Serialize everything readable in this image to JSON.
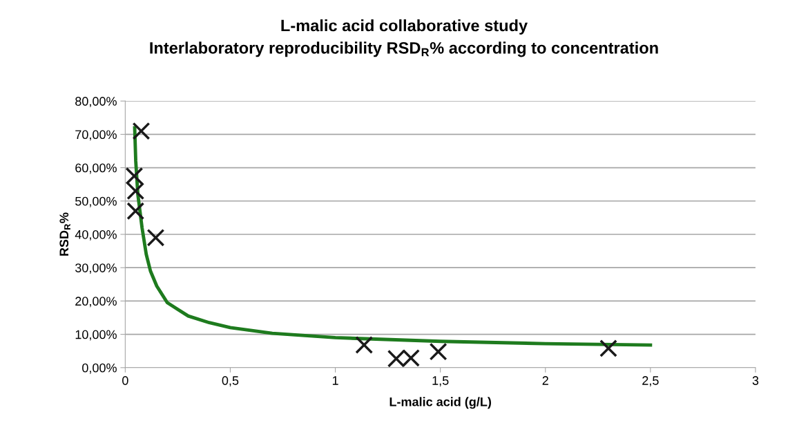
{
  "chart_data": {
    "type": "scatter",
    "title": "L-malic acid collaborative study\nInterlaboratory reproducibility RSD$_{R}$% according to concentration",
    "xlabel": "L-malic acid (g/L)",
    "ylabel": "RSD$_{R}$%",
    "series": [
      {
        "color": "#1a1a1a",
        "marker": "cross",
        "x": [
          0.076,
          0.043,
          0.049,
          0.049,
          0.145,
          1.137,
          1.29,
          1.36,
          1.49,
          2.3
        ],
        "values": [
          71,
          57.5,
          53,
          47,
          39,
          6.8,
          2.7,
          2.9,
          4.8,
          5.8
        ]
      },
      {
        "type": "line",
        "color": "#1e7b1e",
        "marker": "none",
        "line_style": "solid",
        "x": [
          0.045,
          0.05,
          0.06,
          0.08,
          0.1,
          0.12,
          0.15,
          0.2,
          0.3,
          0.4,
          0.5,
          0.7,
          1.0,
          1.5,
          2.0,
          2.5
        ],
        "values": [
          72,
          62,
          52,
          42,
          34,
          29,
          24.5,
          19.5,
          15.5,
          13.5,
          12,
          10.3,
          9,
          7.9,
          7.2,
          6.8
        ]
      }
    ],
    "xlim": [
      0,
      3
    ],
    "xticks": [
      0,
      {
        "value": 0.5,
        "label": "0,5"
      },
      1,
      {
        "value": 1.5,
        "label": "1,5"
      },
      2,
      {
        "value": 2.5,
        "label": "2,5"
      },
      3
    ],
    "ylim": [
      0,
      80
    ],
    "yticks": [
      {
        "value": 0,
        "label": "0,00%"
      },
      {
        "value": 10,
        "label": "10,00%"
      },
      {
        "value": 20,
        "label": "20,00%"
      },
      {
        "value": 30,
        "label": "30,00%"
      },
      {
        "value": 40,
        "label": "40,00%"
      },
      {
        "value": 50,
        "label": "50,00%"
      },
      {
        "value": 60,
        "label": "60,00%"
      },
      {
        "value": 70,
        "label": "70,00%"
      },
      {
        "value": 80,
        "label": "80,00%"
      }
    ],
    "grid": "y",
    "legend": false
  }
}
